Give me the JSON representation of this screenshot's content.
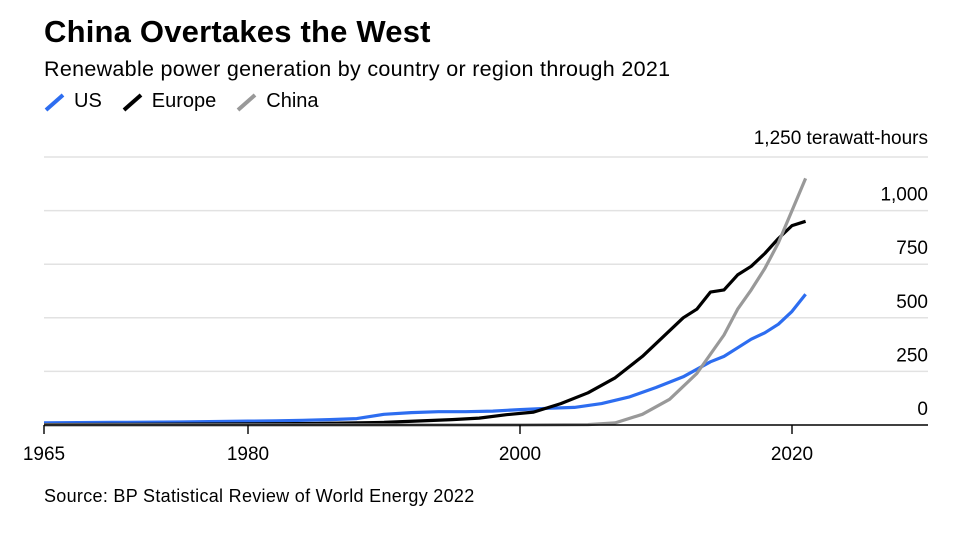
{
  "header": {
    "title": "China Overtakes the West",
    "subtitle": "Renewable power generation by country or region through 2021"
  },
  "legend": [
    {
      "name": "US",
      "color": "#2d6df0"
    },
    {
      "name": "Europe",
      "color": "#000000"
    },
    {
      "name": "China",
      "color": "#999999"
    }
  ],
  "source": "Source: BP Statistical Review of World Energy 2022",
  "chart_data": {
    "type": "line",
    "title": "China Overtakes the West",
    "subtitle": "Renewable power generation by country or region through 2021",
    "unit_label": "1,250 terawatt-hours",
    "xlim": [
      1965,
      2030
    ],
    "ylim": [
      0,
      1250
    ],
    "y_ticks": [
      {
        "value": 0,
        "label": "0"
      },
      {
        "value": 250,
        "label": "250"
      },
      {
        "value": 500,
        "label": "500"
      },
      {
        "value": 750,
        "label": "750"
      },
      {
        "value": 1000,
        "label": "1,000"
      },
      {
        "value": 1250,
        "label": ""
      }
    ],
    "x_ticks": [
      {
        "value": 1965,
        "label": "1965"
      },
      {
        "value": 1980,
        "label": "1980"
      },
      {
        "value": 2000,
        "label": "2000"
      },
      {
        "value": 2020,
        "label": "2020"
      }
    ],
    "series": [
      {
        "name": "US",
        "color": "#2d6df0",
        "x": [
          1965,
          1970,
          1975,
          1980,
          1982,
          1984,
          1986,
          1988,
          1990,
          1992,
          1994,
          1996,
          1998,
          2000,
          2002,
          2004,
          2006,
          2008,
          2010,
          2012,
          2014,
          2015,
          2016,
          2017,
          2018,
          2019,
          2020,
          2021
        ],
        "y": [
          10,
          12,
          14,
          18,
          19,
          22,
          25,
          30,
          50,
          58,
          62,
          62,
          65,
          72,
          78,
          82,
          100,
          130,
          175,
          225,
          295,
          320,
          360,
          400,
          430,
          470,
          530,
          610
        ]
      },
      {
        "name": "Europe",
        "color": "#000000",
        "x": [
          1965,
          1970,
          1975,
          1980,
          1985,
          1990,
          1995,
          1997,
          1999,
          2001,
          2003,
          2005,
          2007,
          2009,
          2011,
          2012,
          2013,
          2014,
          2015,
          2016,
          2017,
          2018,
          2019,
          2020,
          2021
        ],
        "y": [
          2,
          3,
          4,
          5,
          7,
          12,
          25,
          32,
          48,
          60,
          100,
          150,
          220,
          320,
          440,
          500,
          540,
          620,
          630,
          700,
          740,
          800,
          870,
          930,
          950
        ]
      },
      {
        "name": "China",
        "color": "#999999",
        "x": [
          1965,
          1990,
          2000,
          2005,
          2007,
          2009,
          2011,
          2013,
          2015,
          2016,
          2017,
          2018,
          2019,
          2020,
          2021
        ],
        "y": [
          0,
          0,
          0,
          2,
          10,
          50,
          120,
          240,
          420,
          540,
          630,
          730,
          850,
          1000,
          1150
        ]
      }
    ]
  }
}
